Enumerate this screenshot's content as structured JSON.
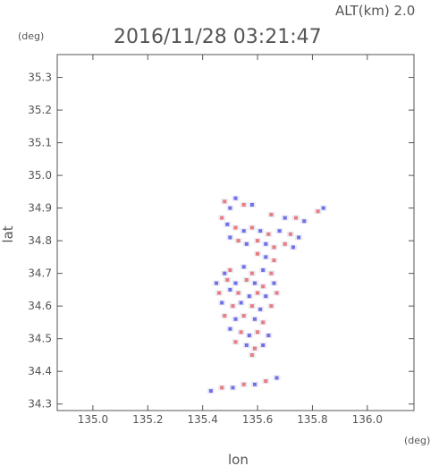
{
  "chart_data": {
    "type": "heatmap",
    "title": "2016/11/28 03:21:47",
    "subtitle": "ALT(km) 2.0",
    "xlabel": "lon",
    "ylabel": "lat",
    "xunit": "(deg)",
    "yunit": "(deg)",
    "xlim": [
      134.87,
      136.17
    ],
    "ylim": [
      34.28,
      35.37
    ],
    "xticks": [
      "135.0",
      "135.2",
      "135.4",
      "135.6",
      "135.8",
      "136.0"
    ],
    "yticks": [
      "34.3",
      "34.4",
      "34.5",
      "34.6",
      "34.7",
      "34.8",
      "34.9",
      "35.0",
      "35.1",
      "35.2",
      "35.3"
    ],
    "grid": false,
    "colors": {
      "positive": "#e86a6a",
      "negative": "#5a5ae6",
      "neutral": "#e8e8f4",
      "axis": "#555555"
    },
    "cells": [
      [
        135.48,
        34.92,
        1
      ],
      [
        135.52,
        34.93,
        -1
      ],
      [
        135.55,
        34.91,
        1
      ],
      [
        135.58,
        34.91,
        -1
      ],
      [
        135.5,
        34.9,
        -1
      ],
      [
        135.65,
        34.88,
        1
      ],
      [
        135.7,
        34.87,
        -1
      ],
      [
        135.74,
        34.87,
        1
      ],
      [
        135.77,
        34.86,
        -1
      ],
      [
        135.82,
        34.89,
        1
      ],
      [
        135.84,
        34.9,
        -1
      ],
      [
        135.47,
        34.87,
        1
      ],
      [
        135.49,
        34.85,
        -1
      ],
      [
        135.52,
        34.84,
        1
      ],
      [
        135.55,
        34.83,
        -1
      ],
      [
        135.58,
        34.84,
        1
      ],
      [
        135.61,
        34.83,
        -1
      ],
      [
        135.64,
        34.82,
        1
      ],
      [
        135.68,
        34.83,
        -1
      ],
      [
        135.72,
        34.82,
        1
      ],
      [
        135.75,
        34.81,
        -1
      ],
      [
        135.5,
        34.81,
        -1
      ],
      [
        135.53,
        34.8,
        1
      ],
      [
        135.56,
        34.79,
        -1
      ],
      [
        135.6,
        34.8,
        1
      ],
      [
        135.63,
        34.79,
        -1
      ],
      [
        135.66,
        34.78,
        1
      ],
      [
        135.7,
        34.79,
        1
      ],
      [
        135.73,
        34.78,
        -1
      ],
      [
        135.6,
        34.76,
        1
      ],
      [
        135.63,
        34.75,
        -1
      ],
      [
        135.66,
        34.74,
        1
      ],
      [
        135.55,
        34.72,
        -1
      ],
      [
        135.5,
        34.71,
        1
      ],
      [
        135.48,
        34.7,
        -1
      ],
      [
        135.58,
        34.7,
        1
      ],
      [
        135.62,
        34.71,
        -1
      ],
      [
        135.65,
        34.7,
        1
      ],
      [
        135.45,
        34.67,
        -1
      ],
      [
        135.49,
        34.68,
        1
      ],
      [
        135.52,
        34.67,
        -1
      ],
      [
        135.56,
        34.68,
        1
      ],
      [
        135.59,
        34.67,
        -1
      ],
      [
        135.62,
        34.66,
        1
      ],
      [
        135.66,
        34.67,
        -1
      ],
      [
        135.46,
        34.64,
        1
      ],
      [
        135.5,
        34.65,
        -1
      ],
      [
        135.53,
        34.64,
        1
      ],
      [
        135.57,
        34.63,
        -1
      ],
      [
        135.6,
        34.64,
        1
      ],
      [
        135.63,
        34.63,
        -1
      ],
      [
        135.67,
        34.64,
        1
      ],
      [
        135.47,
        34.61,
        -1
      ],
      [
        135.51,
        34.6,
        1
      ],
      [
        135.54,
        34.61,
        -1
      ],
      [
        135.58,
        34.6,
        1
      ],
      [
        135.61,
        34.59,
        -1
      ],
      [
        135.65,
        34.6,
        1
      ],
      [
        135.48,
        34.57,
        1
      ],
      [
        135.52,
        34.56,
        -1
      ],
      [
        135.55,
        34.57,
        1
      ],
      [
        135.59,
        34.56,
        -1
      ],
      [
        135.62,
        34.55,
        1
      ],
      [
        135.5,
        34.53,
        -1
      ],
      [
        135.54,
        34.52,
        1
      ],
      [
        135.57,
        34.51,
        -1
      ],
      [
        135.6,
        34.52,
        1
      ],
      [
        135.64,
        34.51,
        -1
      ],
      [
        135.52,
        34.49,
        1
      ],
      [
        135.56,
        34.48,
        -1
      ],
      [
        135.59,
        34.47,
        1
      ],
      [
        135.62,
        34.48,
        -1
      ],
      [
        135.58,
        34.45,
        1
      ],
      [
        135.43,
        34.34,
        -1
      ],
      [
        135.47,
        34.35,
        1
      ],
      [
        135.51,
        34.35,
        -1
      ],
      [
        135.55,
        34.36,
        1
      ],
      [
        135.59,
        34.36,
        -1
      ],
      [
        135.63,
        34.37,
        1
      ],
      [
        135.67,
        34.38,
        -1
      ]
    ]
  }
}
